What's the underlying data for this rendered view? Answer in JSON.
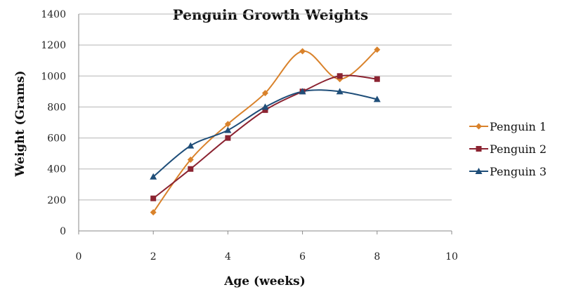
{
  "chart_data": {
    "type": "line",
    "title": "Penguin Growth Weights",
    "xlabel": "Age (weeks)",
    "ylabel": "Weight (Grams)",
    "xlim": [
      0,
      10
    ],
    "ylim": [
      0,
      1400
    ],
    "xticks": [
      0,
      2,
      4,
      6,
      8,
      10
    ],
    "yticks": [
      0,
      200,
      400,
      600,
      800,
      1000,
      1200,
      1400
    ],
    "grid": "horizontal",
    "smooth": true,
    "legend_position": "right",
    "series": [
      {
        "name": "Penguin 1",
        "color": "#d9822b",
        "marker": "diamond",
        "x": [
          2,
          3,
          4,
          5,
          6,
          7,
          8
        ],
        "y": [
          120,
          460,
          690,
          890,
          1160,
          980,
          1170
        ]
      },
      {
        "name": "Penguin 2",
        "color": "#8b2331",
        "marker": "square",
        "x": [
          2,
          3,
          4,
          5,
          6,
          7,
          8
        ],
        "y": [
          210,
          400,
          600,
          780,
          900,
          1000,
          980
        ]
      },
      {
        "name": "Penguin 3",
        "color": "#1f4e79",
        "marker": "triangle",
        "x": [
          2,
          3,
          4,
          5,
          6,
          7,
          8
        ],
        "y": [
          350,
          550,
          650,
          800,
          900,
          900,
          850
        ]
      }
    ]
  }
}
